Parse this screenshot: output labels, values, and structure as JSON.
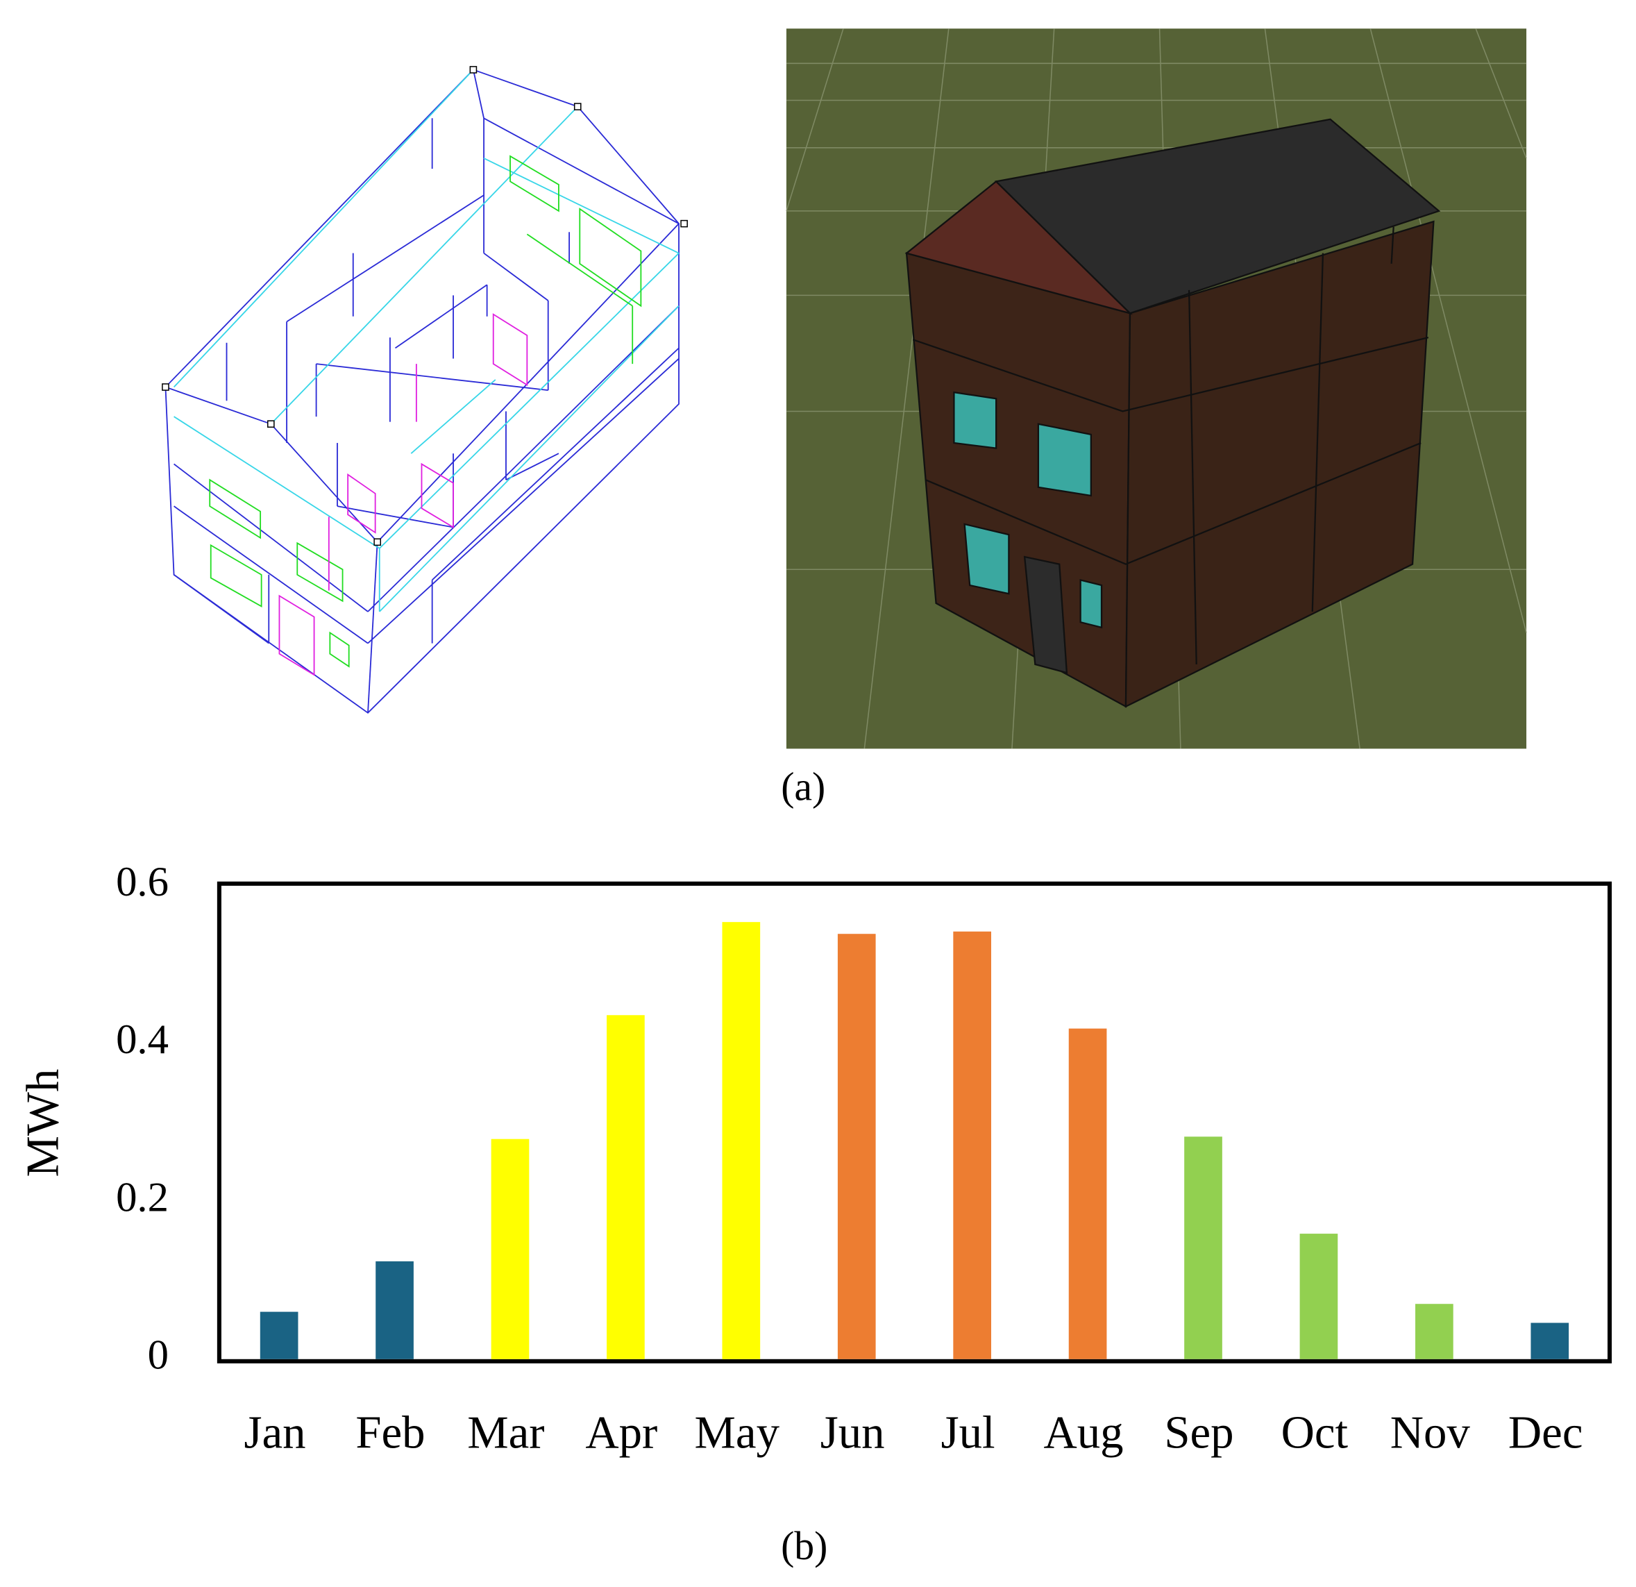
{
  "panel_a": {
    "caption": "(a)"
  },
  "chart_data": {
    "type": "bar",
    "caption": "(b)",
    "y_label": "MWh",
    "categories": [
      "Jan",
      "Feb",
      "Mar",
      "Apr",
      "May",
      "Jun",
      "Jul",
      "Aug",
      "Sep",
      "Oct",
      "Nov",
      "Dec"
    ],
    "values": [
      0.06,
      0.124,
      0.279,
      0.436,
      0.554,
      0.539,
      0.542,
      0.419,
      0.282,
      0.159,
      0.07,
      0.046
    ],
    "colors": [
      "#1a6384",
      "#1a6384",
      "#ffff00",
      "#ffff00",
      "#ffff00",
      "#ed7d31",
      "#ed7d31",
      "#ed7d31",
      "#92d050",
      "#92d050",
      "#92d050",
      "#1a6384"
    ],
    "ylim": [
      0,
      0.6
    ],
    "yticks": [
      0,
      0.2,
      0.4,
      0.6
    ],
    "grid": false
  }
}
